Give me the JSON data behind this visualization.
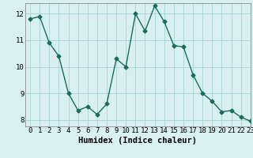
{
  "x": [
    0,
    1,
    2,
    3,
    4,
    5,
    6,
    7,
    8,
    9,
    10,
    11,
    12,
    13,
    14,
    15,
    16,
    17,
    18,
    19,
    20,
    21,
    22,
    23
  ],
  "y": [
    11.8,
    11.9,
    10.9,
    10.4,
    9.0,
    8.35,
    8.5,
    8.2,
    8.6,
    10.3,
    10.0,
    12.0,
    11.35,
    12.3,
    11.7,
    10.8,
    10.75,
    9.7,
    9.0,
    8.7,
    8.3,
    8.35,
    8.1,
    7.95
  ],
  "line_color": "#1a6b5a",
  "marker": "D",
  "markersize": 2.5,
  "linewidth": 1.0,
  "bg_color": "#d8f0f0",
  "grid_color": "#aad4d4",
  "xlabel": "Humidex (Indice chaleur)",
  "ylabel": "",
  "xlim": [
    -0.5,
    23
  ],
  "ylim": [
    7.75,
    12.4
  ],
  "xticks": [
    0,
    1,
    2,
    3,
    4,
    5,
    6,
    7,
    8,
    9,
    10,
    11,
    12,
    13,
    14,
    15,
    16,
    17,
    18,
    19,
    20,
    21,
    22,
    23
  ],
  "yticks": [
    8,
    9,
    10,
    11,
    12
  ],
  "xlabel_fontsize": 7.5,
  "tick_fontsize": 6.5
}
